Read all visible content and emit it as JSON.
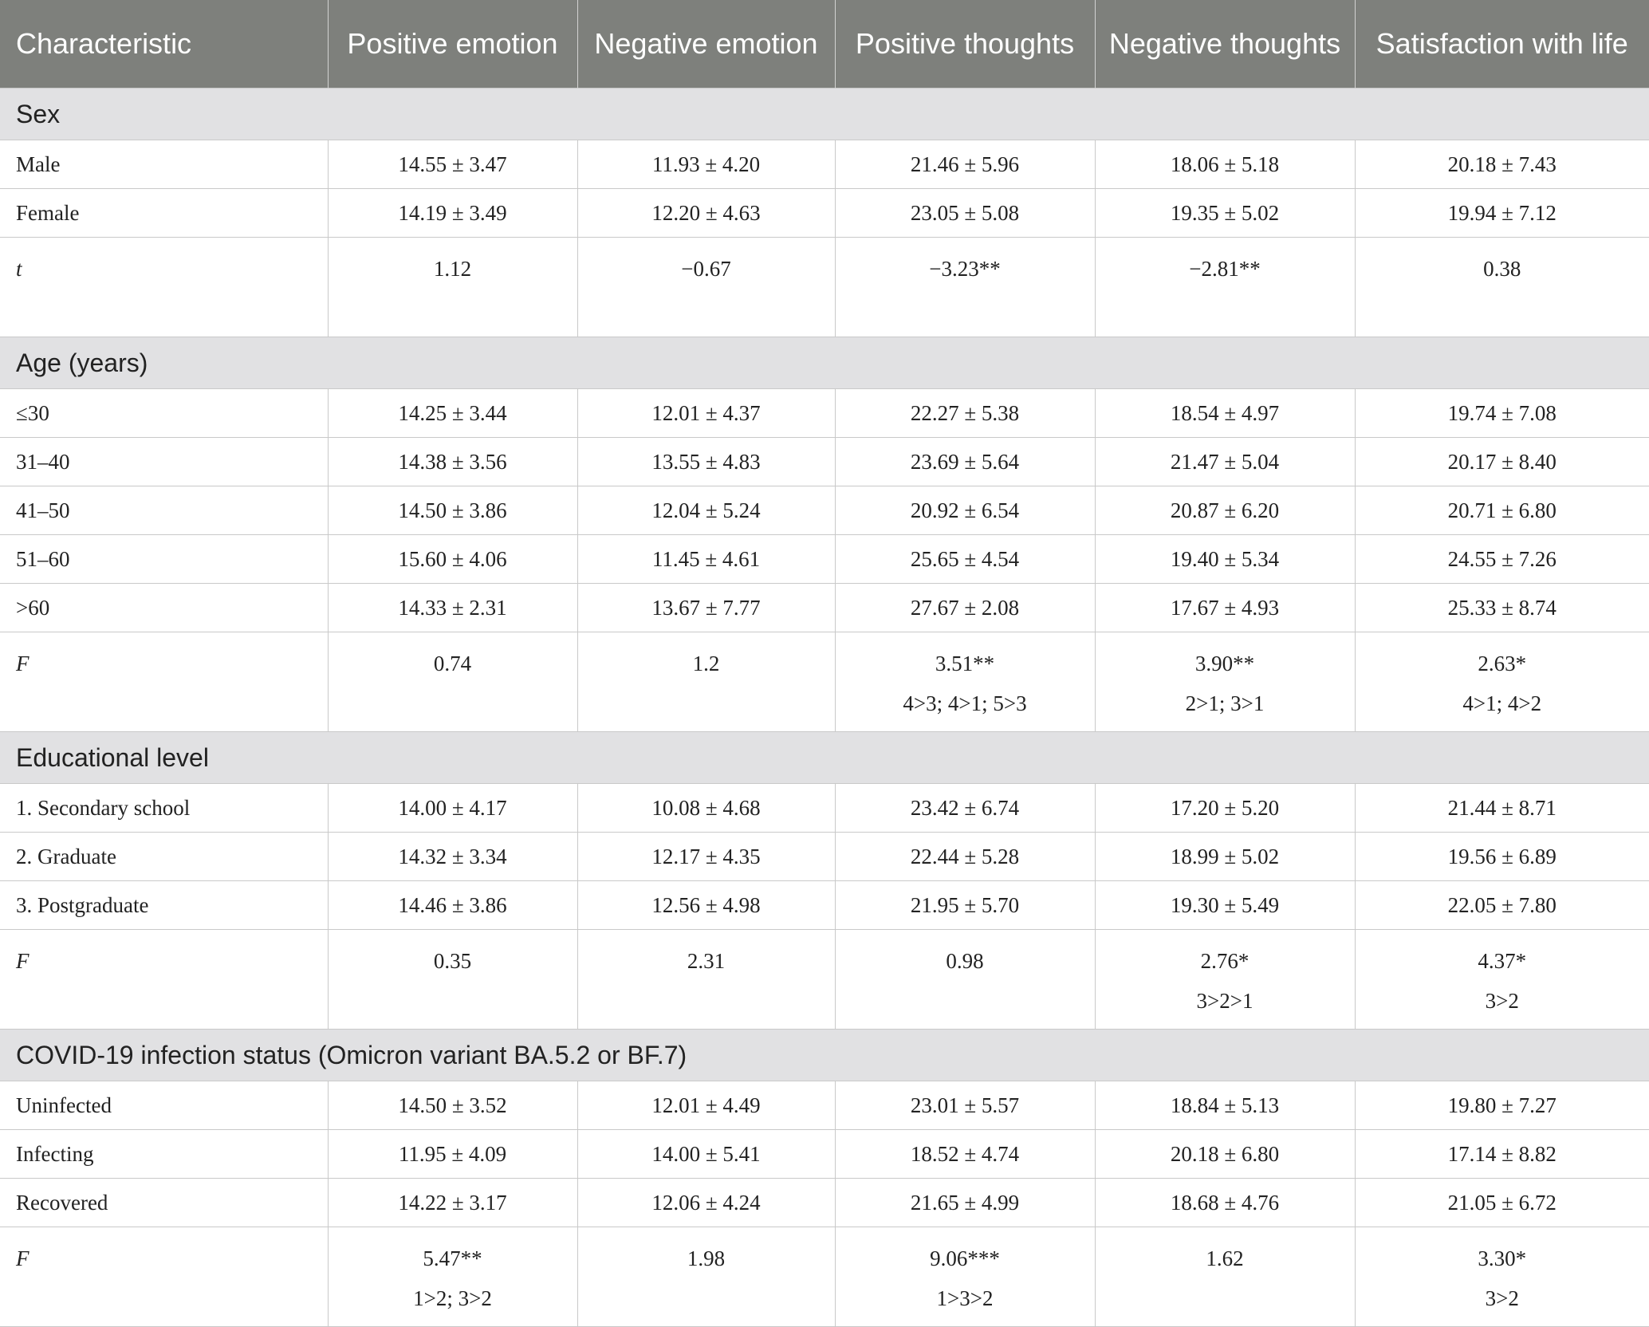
{
  "header": {
    "columns": [
      "Characteristic",
      "Positive emotion",
      "Negative emotion",
      "Positive thoughts",
      "Negative thoughts",
      "Satisfaction with life"
    ]
  },
  "sections": [
    {
      "title": "Sex",
      "rows": [
        {
          "label": "Male",
          "values": [
            "14.55 ± 3.47",
            "11.93 ± 4.20",
            "21.46 ± 5.96",
            "18.06 ± 5.18",
            "20.18 ± 7.43"
          ]
        },
        {
          "label": "Female",
          "values": [
            "14.19 ± 3.49",
            "12.20 ± 4.63",
            "23.05 ± 5.08",
            "19.35 ± 5.02",
            "19.94 ± 7.12"
          ]
        }
      ],
      "stat": {
        "label": "t",
        "values": [
          "1.12",
          "−0.67",
          "−3.23**",
          "−2.81**",
          "0.38"
        ],
        "posthoc": [
          "",
          "",
          "",
          "",
          ""
        ]
      }
    },
    {
      "title": "Age (years)",
      "rows": [
        {
          "label": "≤30",
          "values": [
            "14.25 ± 3.44",
            "12.01 ± 4.37",
            "22.27 ± 5.38",
            "18.54 ± 4.97",
            "19.74 ± 7.08"
          ]
        },
        {
          "label": "31–40",
          "values": [
            "14.38 ± 3.56",
            "13.55 ± 4.83",
            "23.69 ± 5.64",
            "21.47 ± 5.04",
            "20.17 ± 8.40"
          ]
        },
        {
          "label": "41–50",
          "values": [
            "14.50 ± 3.86",
            "12.04 ± 5.24",
            "20.92 ± 6.54",
            "20.87 ± 6.20",
            "20.71 ± 6.80"
          ]
        },
        {
          "label": "51–60",
          "values": [
            "15.60 ± 4.06",
            "11.45 ± 4.61",
            "25.65 ± 4.54",
            "19.40 ± 5.34",
            "24.55 ± 7.26"
          ]
        },
        {
          "label": ">60",
          "values": [
            "14.33 ± 2.31",
            "13.67 ± 7.77",
            "27.67 ± 2.08",
            "17.67 ± 4.93",
            "25.33 ± 8.74"
          ]
        }
      ],
      "stat": {
        "label": "F",
        "values": [
          "0.74",
          "1.2",
          "3.51**",
          "3.90**",
          "2.63*"
        ],
        "posthoc": [
          "",
          "",
          "4>3; 4>1; 5>3",
          "2>1; 3>1",
          "4>1; 4>2"
        ]
      }
    },
    {
      "title": "Educational level",
      "rows": [
        {
          "label": "1. Secondary school",
          "values": [
            "14.00 ± 4.17",
            "10.08 ± 4.68",
            "23.42 ± 6.74",
            "17.20 ± 5.20",
            "21.44 ± 8.71"
          ]
        },
        {
          "label": "2. Graduate",
          "values": [
            "14.32 ± 3.34",
            "12.17 ± 4.35",
            "22.44 ± 5.28",
            "18.99 ± 5.02",
            "19.56 ± 6.89"
          ]
        },
        {
          "label": "3. Postgraduate",
          "values": [
            "14.46 ± 3.86",
            "12.56 ± 4.98",
            "21.95 ± 5.70",
            "19.30 ± 5.49",
            "22.05 ± 7.80"
          ]
        }
      ],
      "stat": {
        "label": "F",
        "values": [
          "0.35",
          "2.31",
          "0.98",
          "2.76*",
          "4.37*"
        ],
        "posthoc": [
          "",
          "",
          "",
          "3>2>1",
          "3>2"
        ]
      }
    },
    {
      "title": "COVID-19 infection status (Omicron variant BA.5.2 or BF.7)",
      "rows": [
        {
          "label": "Uninfected",
          "values": [
            "14.50 ± 3.52",
            "12.01 ± 4.49",
            "23.01 ± 5.57",
            "18.84 ± 5.13",
            "19.80 ± 7.27"
          ]
        },
        {
          "label": "Infecting",
          "values": [
            "11.95 ± 4.09",
            "14.00 ± 5.41",
            "18.52 ± 4.74",
            "20.18 ± 6.80",
            "17.14 ± 8.82"
          ]
        },
        {
          "label": "Recovered",
          "values": [
            "14.22 ± 3.17",
            "12.06 ± 4.24",
            "21.65 ± 4.99",
            "18.68 ± 4.76",
            "21.05 ± 6.72"
          ]
        }
      ],
      "stat": {
        "label": "F",
        "values": [
          "5.47**",
          "1.98",
          "9.06***",
          "1.62",
          "3.30*"
        ],
        "posthoc": [
          "1>2; 3>2",
          "",
          "1>3>2",
          "",
          "3>2"
        ]
      }
    }
  ]
}
